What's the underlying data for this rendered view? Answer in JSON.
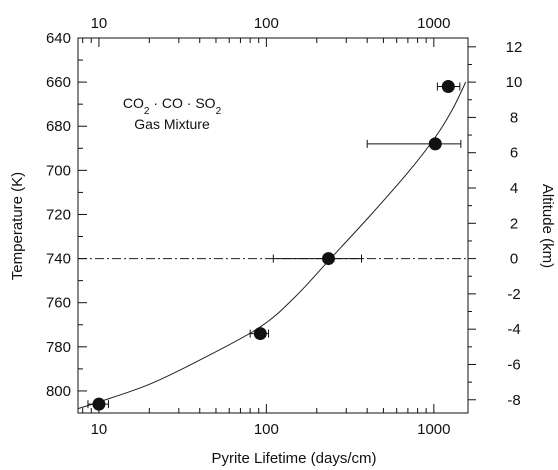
{
  "chart_data": {
    "type": "scatter",
    "xlabel": "Pyrite Lifetime (days/cm)",
    "ylabel": "Temperature (K)",
    "y2label": "Altitude (km)",
    "x_scale": "log",
    "x_ticks": [
      "10",
      "100",
      "1000"
    ],
    "top_x_ticks": [
      "10",
      "100",
      "1000"
    ],
    "xlim": [
      7.5,
      1600
    ],
    "y_ticks": [
      "640",
      "660",
      "680",
      "700",
      "720",
      "740",
      "760",
      "780",
      "800"
    ],
    "ylim": [
      810,
      640
    ],
    "y2_ticks": [
      "12",
      "10",
      "8",
      "6",
      "4",
      "2",
      "0",
      "-2",
      "-4",
      "-6",
      "-8"
    ],
    "annotation_line1": "CO2 · CO · SO2",
    "annotation_line2": "Gas Mixture",
    "reference_line": {
      "y": 740,
      "style": "dash-dot"
    },
    "series": [
      {
        "points": [
          {
            "x": 10,
            "y": 806,
            "xerr": [
              8.6,
              11.4
            ]
          },
          {
            "x": 92,
            "y": 774,
            "xerr": [
              80,
              103
            ]
          },
          {
            "x": 235,
            "y": 740,
            "xerr": [
              110,
              370
            ]
          },
          {
            "x": 1020,
            "y": 688,
            "xerr": [
              400,
              1450
            ]
          },
          {
            "x": 1220,
            "y": 662,
            "xerr": [
              1050,
              1430
            ]
          }
        ]
      }
    ],
    "fit_curve": [
      {
        "x": 7.5,
        "y": 808
      },
      {
        "x": 10,
        "y": 805
      },
      {
        "x": 20,
        "y": 797
      },
      {
        "x": 40,
        "y": 786
      },
      {
        "x": 92,
        "y": 771
      },
      {
        "x": 150,
        "y": 757
      },
      {
        "x": 235,
        "y": 741
      },
      {
        "x": 400,
        "y": 722
      },
      {
        "x": 700,
        "y": 701
      },
      {
        "x": 1020,
        "y": 685
      },
      {
        "x": 1300,
        "y": 672
      },
      {
        "x": 1550,
        "y": 660
      }
    ]
  }
}
